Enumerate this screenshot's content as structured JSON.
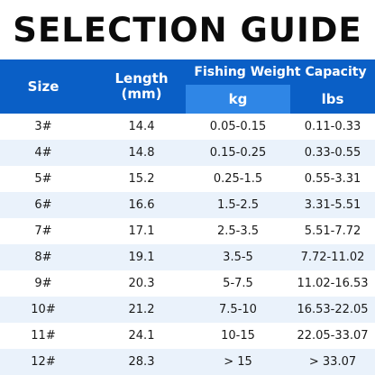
{
  "title": "SELECTION GUIDE",
  "header": {
    "size": "Size",
    "length_line1": "Length",
    "length_line2": "(mm)",
    "capacity": "Fishing Weight Capacity",
    "kg": "kg",
    "lbs": "lbs"
  },
  "rows": [
    {
      "size": "3#",
      "length": "14.4",
      "kg": "0.05-0.15",
      "lbs": "0.11-0.33"
    },
    {
      "size": "4#",
      "length": "14.8",
      "kg": "0.15-0.25",
      "lbs": "0.33-0.55"
    },
    {
      "size": "5#",
      "length": "15.2",
      "kg": "0.25-1.5",
      "lbs": "0.55-3.31"
    },
    {
      "size": "6#",
      "length": "16.6",
      "kg": "1.5-2.5",
      "lbs": "3.31-5.51"
    },
    {
      "size": "7#",
      "length": "17.1",
      "kg": "2.5-3.5",
      "lbs": "5.51-7.72"
    },
    {
      "size": "8#",
      "length": "19.1",
      "kg": "3.5-5",
      "lbs": "7.72-11.02"
    },
    {
      "size": "9#",
      "length": "20.3",
      "kg": "5-7.5",
      "lbs": "11.02-16.53"
    },
    {
      "size": "10#",
      "length": "21.2",
      "kg": "7.5-10",
      "lbs": "16.53-22.05"
    },
    {
      "size": "11#",
      "length": "24.1",
      "kg": "10-15",
      "lbs": "22.05-33.07"
    },
    {
      "size": "12#",
      "length": "28.3",
      "kg": "> 15",
      "lbs": "> 33.07"
    }
  ],
  "colors": {
    "header_blue": "#0a5fc6",
    "kg_header_blue": "#2f86e6",
    "row_alt": "#eaf2fb"
  }
}
